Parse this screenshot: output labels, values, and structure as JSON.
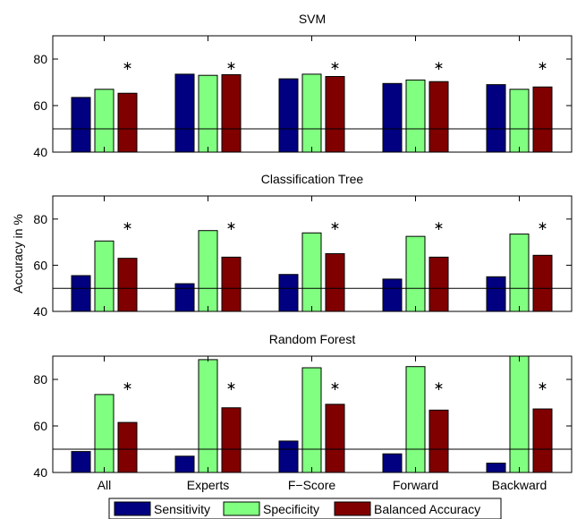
{
  "chart_data": [
    {
      "type": "bar",
      "title": "SVM",
      "ylabel": "",
      "categories": [
        "All",
        "Experts",
        "F−Score",
        "Forward",
        "Backward"
      ],
      "series": [
        {
          "name": "Sensitivity",
          "color": "#000080",
          "values": [
            63.5,
            73.5,
            71.5,
            69.5,
            69
          ]
        },
        {
          "name": "Specificity",
          "color": "#80ff80",
          "values": [
            67,
            73,
            73.5,
            71,
            67
          ]
        },
        {
          "name": "Balanced Accuracy",
          "color": "#800000",
          "values": [
            65.3,
            73.3,
            72.5,
            70.3,
            68
          ]
        }
      ],
      "ylim": [
        40,
        90
      ],
      "yticks": [
        40,
        60,
        80
      ],
      "reference_line": 50,
      "significance_marker": "∗"
    },
    {
      "type": "bar",
      "title": "Classification Tree",
      "ylabel": "Accuracy in %",
      "categories": [
        "All",
        "Experts",
        "F−Score",
        "Forward",
        "Backward"
      ],
      "series": [
        {
          "name": "Sensitivity",
          "color": "#000080",
          "values": [
            55.5,
            52,
            56,
            54,
            55
          ]
        },
        {
          "name": "Specificity",
          "color": "#80ff80",
          "values": [
            70.5,
            75,
            74,
            72.5,
            73.5
          ]
        },
        {
          "name": "Balanced Accuracy",
          "color": "#800000",
          "values": [
            63,
            63.5,
            65,
            63.5,
            64.3
          ]
        }
      ],
      "ylim": [
        40,
        90
      ],
      "yticks": [
        40,
        60,
        80
      ],
      "reference_line": 50,
      "significance_marker": "∗"
    },
    {
      "type": "bar",
      "title": "Random Forest",
      "ylabel": "",
      "categories": [
        "All",
        "Experts",
        "F−Score",
        "Forward",
        "Backward"
      ],
      "series": [
        {
          "name": "Sensitivity",
          "color": "#000080",
          "values": [
            49,
            47,
            53.5,
            48,
            44
          ]
        },
        {
          "name": "Specificity",
          "color": "#80ff80",
          "values": [
            73.5,
            88.5,
            85,
            85.5,
            90
          ]
        },
        {
          "name": "Balanced Accuracy",
          "color": "#800000",
          "values": [
            61.5,
            67.8,
            69.3,
            66.8,
            67.3
          ]
        }
      ],
      "ylim": [
        40,
        90
      ],
      "yticks": [
        40,
        60,
        80
      ],
      "reference_line": 50,
      "significance_marker": "∗"
    }
  ],
  "legend": {
    "items": [
      {
        "label": "Sensitivity",
        "color": "#000080"
      },
      {
        "label": "Specificity",
        "color": "#80ff80"
      },
      {
        "label": "Balanced Accuracy",
        "color": "#800000"
      }
    ]
  }
}
